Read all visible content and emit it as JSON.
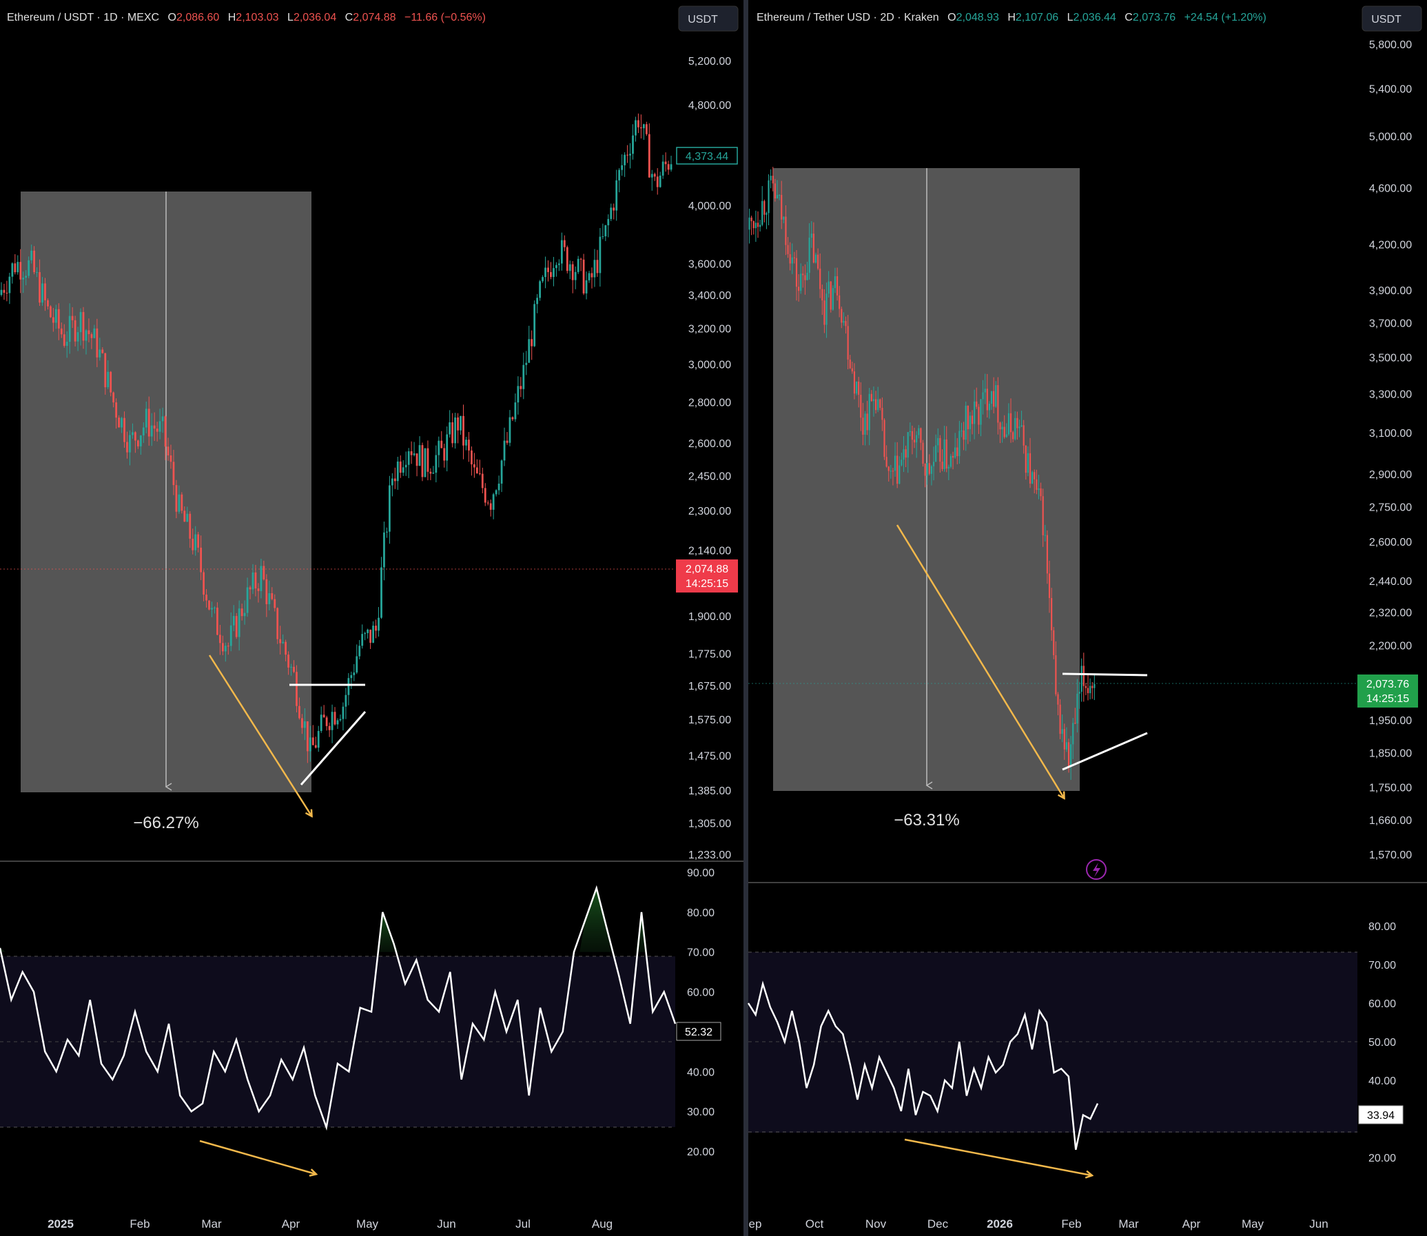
{
  "colors": {
    "up": "#26a69a",
    "down": "#ef5350",
    "panel_bg": "#000000",
    "box_fill": "#555555",
    "arrow": "#f2b84b",
    "rsi_band": "#0e0c1c",
    "rsi_line": "#ffffff",
    "text": "#d1d4dc"
  },
  "left": {
    "header": {
      "symbol": "Ethereum / USDT · 1D · MEXC",
      "o_label": "O",
      "o": "2,086.60",
      "h_label": "H",
      "h": "2,103.03",
      "l_label": "L",
      "l": "2,036.04",
      "c_label": "C",
      "c": "2,074.88",
      "chg": "−11.66 (−0.56%)"
    },
    "currency_button": "USDT",
    "price_tag": "2,074.88",
    "countdown": "14:25:15",
    "peak_tag": "4,373.44",
    "measure_label": "−66.27%",
    "rsi_value": "52.32",
    "xaxis_ticks": [
      "2025",
      "Feb",
      "Mar",
      "Apr",
      "May",
      "Jun",
      "Jul",
      "Aug"
    ]
  },
  "right": {
    "header": {
      "symbol": "Ethereum / Tether USD · 2D · Kraken",
      "o_label": "O",
      "o": "2,048.93",
      "h_label": "H",
      "h": "2,107.06",
      "l_label": "L",
      "l": "2,036.44",
      "c_label": "C",
      "c": "2,073.76",
      "chg": "+24.54 (+1.20%)"
    },
    "currency_button": "USDT",
    "price_tag": "2,073.76",
    "countdown": "14:25:15",
    "measure_label": "−63.31%",
    "rsi_value": "33.94",
    "xaxis_ticks": [
      "ep",
      "Oct",
      "Nov",
      "Dec",
      "2026",
      "Feb",
      "Mar",
      "Apr",
      "May",
      "Jun"
    ]
  },
  "chart_data": [
    {
      "type": "line",
      "series": [
        {
          "values": [
            3400,
            3600,
            3580,
            3300,
            3150,
            3250,
            3100,
            2800,
            2600,
            2700,
            2650,
            2300,
            2150,
            1900,
            1800,
            1950,
            2050,
            1850,
            1700,
            1480,
            1580,
            1620,
            1800,
            1850,
            2450,
            2600,
            2500,
            2550,
            2700,
            2450,
            2350,
            2600,
            2950,
            3400,
            3700,
            3600,
            3450,
            3800,
            4300,
            4700,
            4150,
            4373.44
          ]
        }
      ],
      "y_ticks": [
        5200,
        4800,
        4000,
        3600,
        3400,
        3200,
        3000,
        2800,
        2600,
        2450,
        2300,
        2140,
        1900,
        1775,
        1675,
        1575,
        1475,
        1385,
        1305,
        1233
      ],
      "y_tick_labels": [
        "5,200.00",
        "4,800.00",
        "4,000.00",
        "3,600.00",
        "3,400.00",
        "3,200.00",
        "3,000.00",
        "2,800.00",
        "2,600.00",
        "2,450.00",
        "2,300.00",
        "2,140.00",
        "1,900.00",
        "1,775.00",
        "1,675.00",
        "1,575.00",
        "1,475.00",
        "1,385.00",
        "1,305.00",
        "1,233.00"
      ],
      "ylim": [
        1233,
        5200
      ],
      "log_scale": true,
      "rsi": {
        "values": [
          71,
          58,
          65,
          60,
          45,
          40,
          48,
          44,
          58,
          42,
          38,
          44,
          55,
          45,
          40,
          52,
          34,
          30,
          32,
          45,
          40,
          48,
          38,
          30,
          34,
          43,
          38,
          46,
          34,
          26,
          42,
          40,
          56,
          55,
          80,
          72,
          62,
          68,
          58,
          55,
          65,
          38,
          52,
          48,
          60,
          50,
          58,
          34,
          56,
          45,
          50,
          70,
          78,
          86,
          75,
          64,
          52,
          80,
          55,
          60,
          52
        ],
        "y_ticks": [
          90,
          80,
          70,
          60,
          50,
          40,
          30,
          20
        ],
        "y_tick_labels": [
          "90.00",
          "80.00",
          "70.00",
          "60.00",
          "50.00",
          "40.00",
          "30.00",
          "20.00"
        ],
        "band": [
          30,
          70
        ],
        "ylim": [
          15,
          90
        ]
      },
      "annotations": {
        "white_h_line": 1675,
        "white_trendline": [
          1385,
          1575
        ],
        "measure_box": [
          1385,
          4150
        ]
      }
    },
    {
      "type": "line",
      "series": [
        {
          "values": [
            4300,
            4450,
            4600,
            4300,
            3900,
            4200,
            3800,
            3950,
            3500,
            3150,
            3300,
            2850,
            2950,
            3100,
            2900,
            3000,
            2950,
            3150,
            3200,
            3350,
            3100,
            3150,
            2900,
            2700,
            2000,
            1820,
            2070,
            2073.76
          ]
        }
      ],
      "y_ticks": [
        5800,
        5400,
        5000,
        4600,
        4200,
        3900,
        3700,
        3500,
        3300,
        3100,
        2900,
        2750,
        2600,
        2440,
        2320,
        2200,
        1950,
        1850,
        1750,
        1660,
        1570
      ],
      "y_tick_labels": [
        "5,800.00",
        "5,400.00",
        "5,000.00",
        "4,600.00",
        "4,200.00",
        "3,900.00",
        "3,700.00",
        "3,500.00",
        "3,300.00",
        "3,100.00",
        "2,900.00",
        "2,750.00",
        "2,600.00",
        "2,440.00",
        "2,320.00",
        "2,200.00",
        "1,950.00",
        "1,850.00",
        "1,750.00",
        "1,660.00",
        "1,570.00"
      ],
      "ylim": [
        1570,
        5800
      ],
      "log_scale": true,
      "rsi": {
        "values": [
          60,
          57,
          65,
          59,
          55,
          50,
          58,
          50,
          38,
          44,
          54,
          58,
          54,
          52,
          44,
          35,
          44,
          38,
          46,
          42,
          38,
          32,
          43,
          31,
          37,
          36,
          32,
          40,
          38,
          50,
          36,
          43,
          38,
          46,
          42,
          44,
          50,
          52,
          57,
          48,
          58,
          55,
          42,
          43,
          41,
          22,
          31,
          30,
          34
        ],
        "y_ticks": [
          80,
          70,
          60,
          50,
          40,
          30,
          20
        ],
        "y_tick_labels": [
          "80.00",
          "70.00",
          "60.00",
          "50.00",
          "40.00",
          "30.00",
          "20.00"
        ],
        "band": [
          30,
          70
        ],
        "ylim": [
          15,
          85
        ]
      },
      "annotations": {
        "white_h_line": 2130,
        "white_trendline": [
          1820,
          1900
        ],
        "measure_box": [
          1750,
          4700
        ]
      }
    }
  ]
}
